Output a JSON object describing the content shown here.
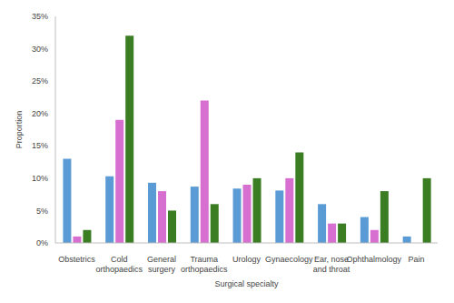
{
  "chart_data": {
    "type": "bar",
    "x_label": "Surgical specialty",
    "y_label": "Proportion",
    "categories": [
      "Obstetrics",
      "Cold orthopaedics",
      "General surgery",
      "Trauma orthopaedics",
      "Urology",
      "Gynaecology",
      "Ear, nose and throat",
      "Ophthalmology",
      "Pain"
    ],
    "series": [
      {
        "color": "#5b9bd5",
        "values": [
          13,
          10.3,
          9.3,
          8.7,
          8.4,
          8.1,
          6,
          4,
          1
        ]
      },
      {
        "color": "#d66fd0",
        "values": [
          1,
          19,
          8,
          22,
          9,
          10,
          3,
          2,
          0
        ]
      },
      {
        "color": "#3b7d23",
        "values": [
          2,
          32,
          5,
          6,
          10,
          14,
          3,
          8,
          10
        ]
      }
    ],
    "ylim": [
      0,
      35
    ],
    "yticks": [
      {
        "value": 0,
        "label": "0%"
      },
      {
        "value": 5,
        "label": "5%"
      },
      {
        "value": 10,
        "label": "10%"
      },
      {
        "value": 15,
        "label": "15%"
      },
      {
        "value": 20,
        "label": "20%"
      },
      {
        "value": 25,
        "label": "25%"
      },
      {
        "value": 30,
        "label": "30%"
      },
      {
        "value": 35,
        "label": "35%"
      }
    ],
    "grid": false,
    "legend": false
  }
}
